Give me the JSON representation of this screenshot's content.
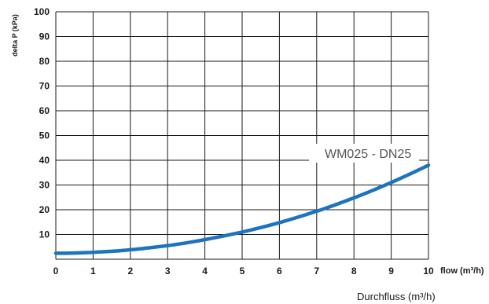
{
  "chart_data": {
    "type": "line",
    "title": "",
    "ylabel": "delta P (kPa)",
    "xlabel": "flow (m³/h)",
    "xlabel_secondary": "Durchfluss (m³/h)",
    "xlim": [
      0,
      10
    ],
    "ylim": [
      0,
      100
    ],
    "x_ticks": [
      "0",
      "1",
      "2",
      "3",
      "4",
      "5",
      "6",
      "7",
      "8",
      "9",
      "10"
    ],
    "y_ticks": [
      "10",
      "20",
      "30",
      "40",
      "50",
      "60",
      "70",
      "80",
      "90",
      "100"
    ],
    "grid": true,
    "series": [
      {
        "name": "WM025 - DN25",
        "color": "#1e73be",
        "x": [
          0,
          0.5,
          1,
          1.5,
          2,
          2.5,
          3,
          3.5,
          4,
          4.5,
          5,
          5.5,
          6,
          6.5,
          7,
          7.5,
          8,
          8.5,
          9,
          9.5,
          10
        ],
        "y": [
          2.4,
          2.5,
          2.8,
          3.2,
          3.8,
          4.6,
          5.5,
          6.6,
          7.9,
          9.4,
          11,
          12.8,
          14.8,
          17,
          19.4,
          22,
          24.8,
          27.8,
          31,
          34.4,
          38
        ]
      }
    ]
  }
}
